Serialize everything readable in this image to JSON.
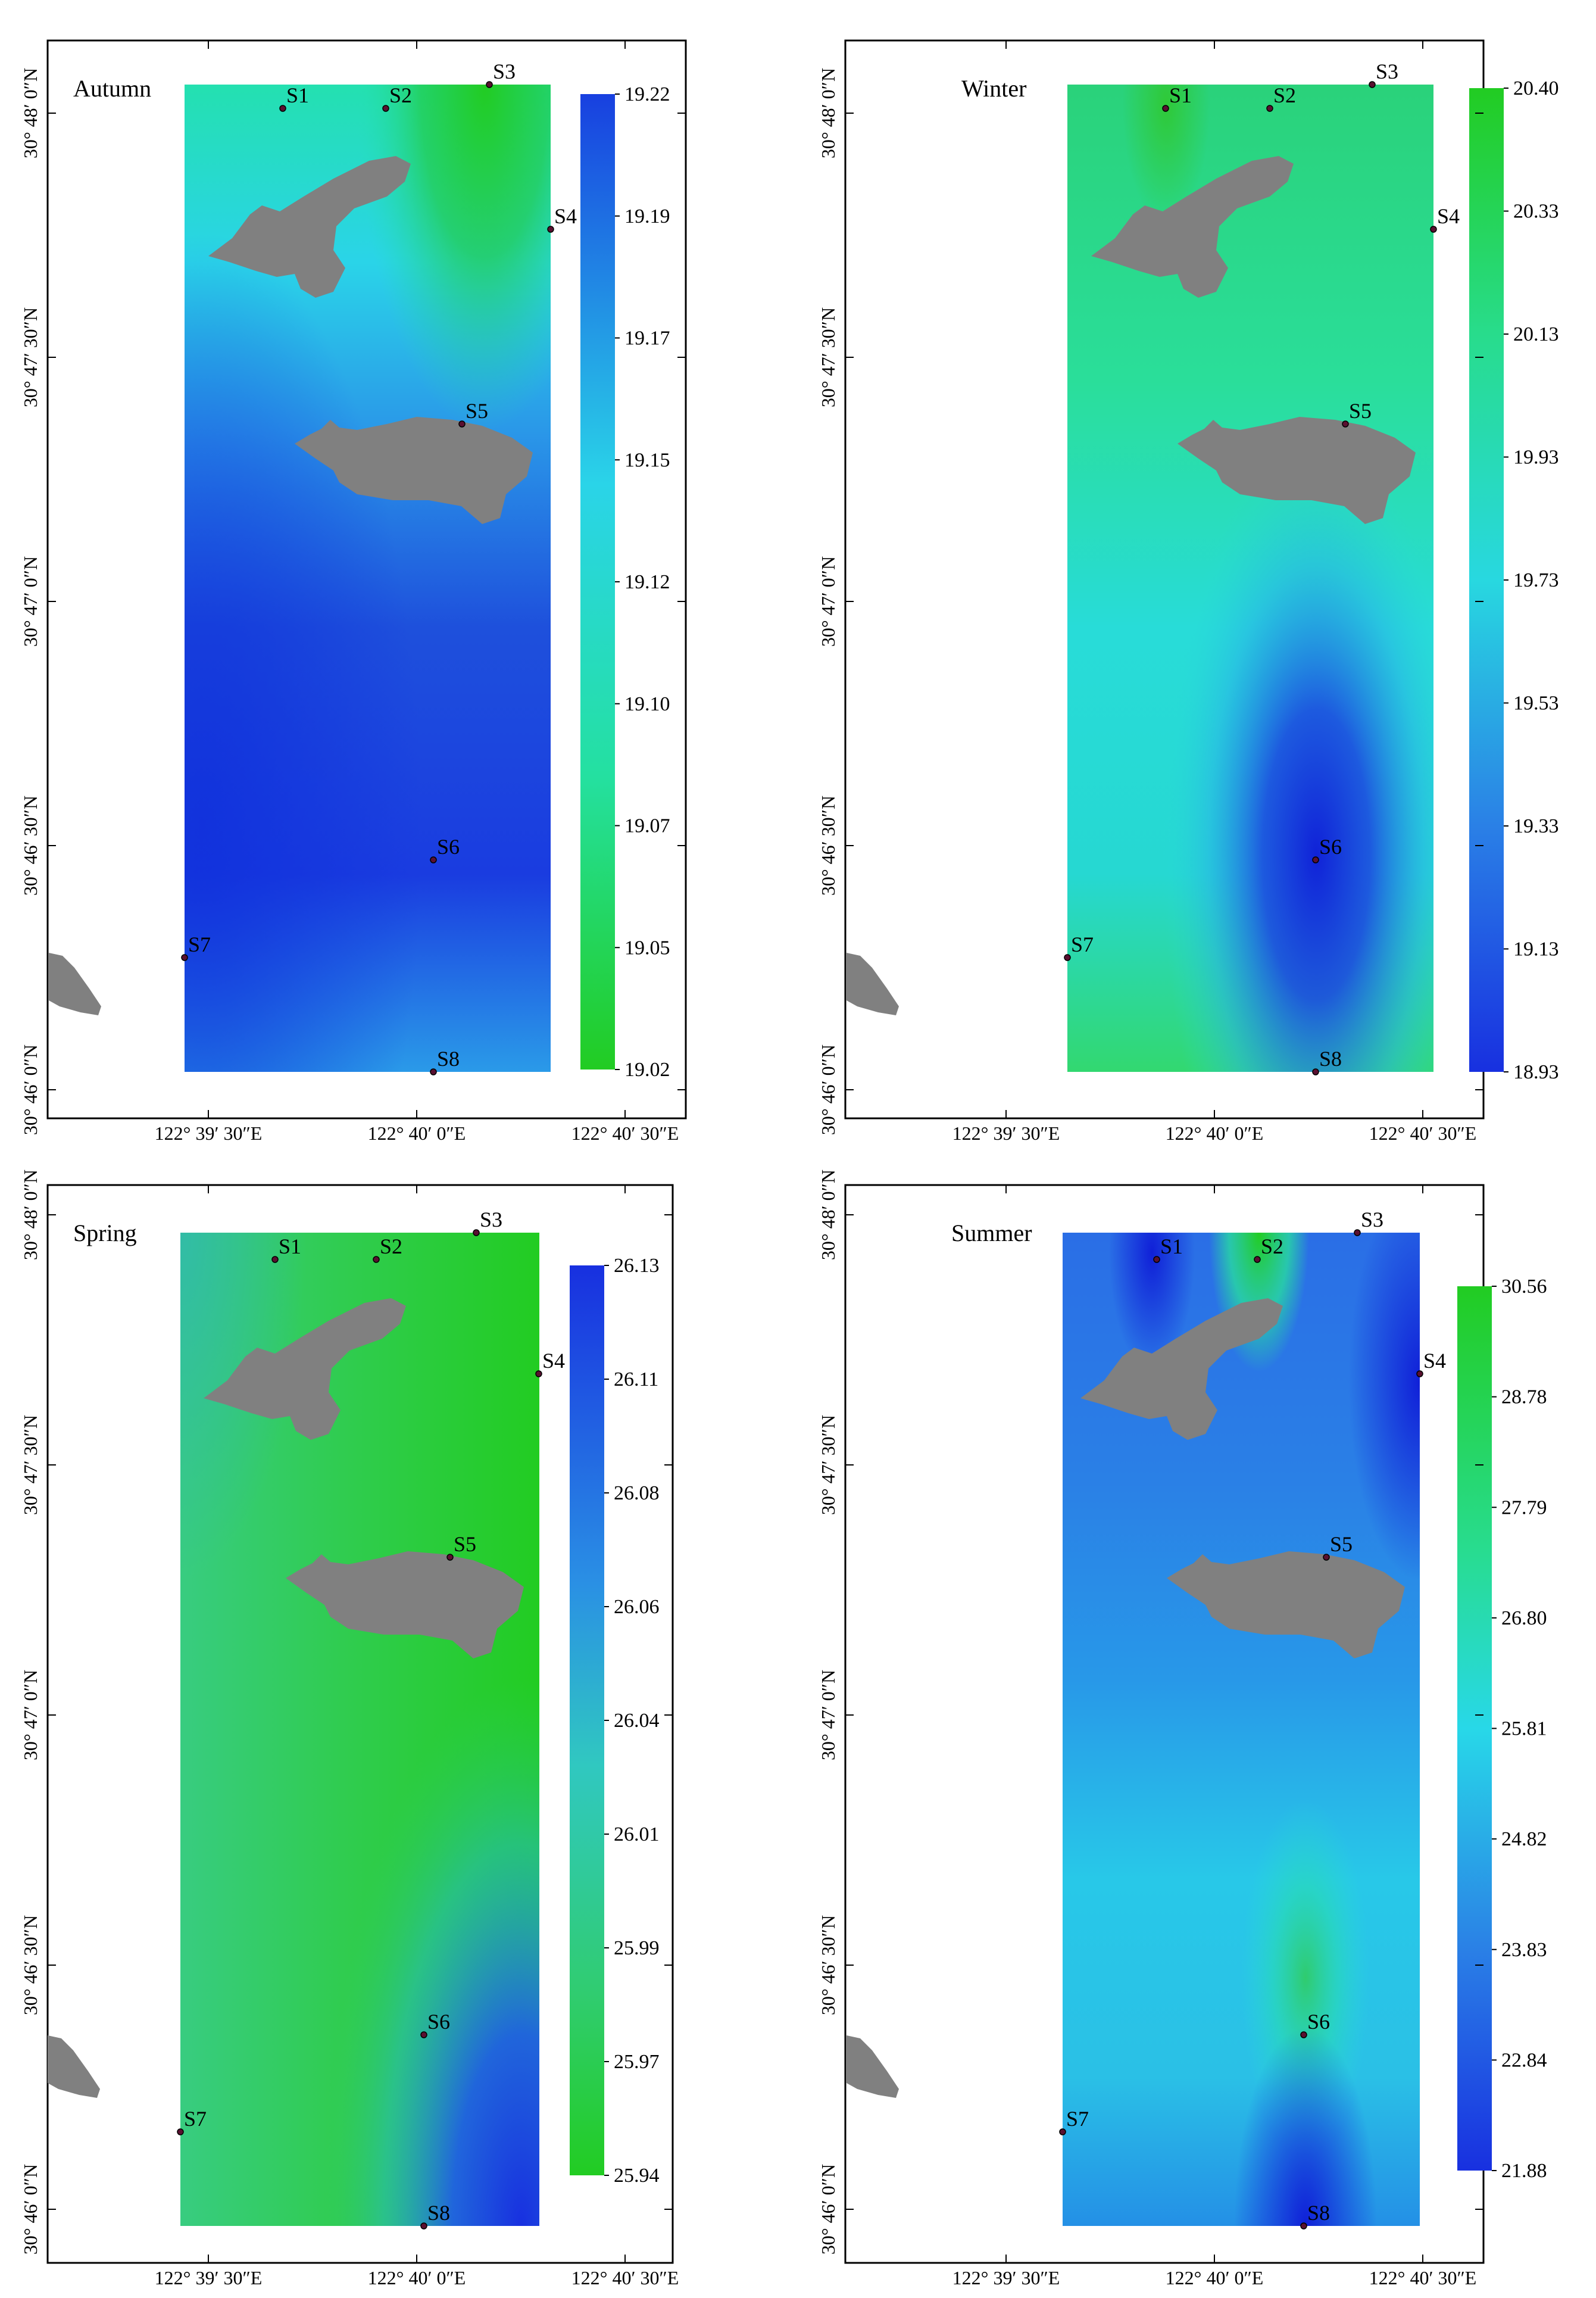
{
  "station_marker_color": "#5a1030",
  "island_color": "#808080",
  "panels": [
    {
      "season": "Autumn",
      "lon_labels": [
        "122° 39′ 30″E",
        "122° 40′ 0″E",
        "122° 40′ 30″E"
      ],
      "lat_labels": [
        "30° 48′ 0″N",
        "30° 47′ 30″N",
        "30° 47′ 0″N",
        "30° 46′ 30″N",
        "30° 46′ 0″N"
      ],
      "colorbar": {
        "top_color": "#1840e0",
        "bottom_color": "#22cc22",
        "ticks": [
          "19.22",
          "19.19",
          "19.17",
          "19.15",
          "19.12",
          "19.10",
          "19.07",
          "19.05",
          "19.02"
        ]
      },
      "stations": [
        "S1",
        "S2",
        "S3",
        "S4",
        "S5",
        "S6",
        "S7",
        "S8"
      ]
    },
    {
      "season": "Winter",
      "lon_labels": [
        "122° 39′ 30″E",
        "122° 40′ 0″E",
        "122° 40′ 30″E"
      ],
      "lat_labels": [
        "30° 48′ 0″N",
        "30° 47′ 30″N",
        "30° 47′ 0″N",
        "30° 46′ 30″N",
        "30° 46′ 0″N"
      ],
      "colorbar": {
        "top_color": "#22cc22",
        "bottom_color": "#1830e0",
        "ticks": [
          "20.40",
          "20.33",
          "20.13",
          "19.93",
          "19.73",
          "19.53",
          "19.33",
          "19.13",
          "18.93"
        ]
      },
      "stations": [
        "S1",
        "S2",
        "S3",
        "S4",
        "S5",
        "S6",
        "S7",
        "S8"
      ]
    },
    {
      "season": "Spring",
      "lon_labels": [
        "122° 39′ 30″E",
        "122° 40′ 0″E",
        "122° 40′ 30″E"
      ],
      "lat_labels": [
        "30° 48′ 0″N",
        "30° 47′ 30″N",
        "30° 47′ 0″N",
        "30° 46′ 30″N",
        "30° 46′ 0″N"
      ],
      "colorbar": {
        "top_color": "#1830e0",
        "bottom_color": "#22cc22",
        "ticks": [
          "26.13",
          "26.11",
          "26.08",
          "26.06",
          "26.04",
          "26.01",
          "25.99",
          "25.97",
          "25.94"
        ]
      },
      "stations": [
        "S1",
        "S2",
        "S3",
        "S4",
        "S5",
        "S6",
        "S7",
        "S8"
      ]
    },
    {
      "season": "Summer",
      "lon_labels": [
        "122° 39′ 30″E",
        "122° 40′ 0″E",
        "122° 40′ 30″E"
      ],
      "lat_labels": [
        "30° 48′ 0″N",
        "30° 47′ 30″N",
        "30° 47′ 0″N",
        "30° 46′ 30″N",
        "30° 46′ 0″N"
      ],
      "colorbar": {
        "top_color": "#22cc22",
        "bottom_color": "#1830e0",
        "ticks": [
          "30.56",
          "28.78",
          "27.79",
          "26.80",
          "25.81",
          "24.82",
          "23.83",
          "22.84",
          "21.88"
        ]
      },
      "stations": [
        "S1",
        "S2",
        "S3",
        "S4",
        "S5",
        "S6",
        "S7",
        "S8"
      ]
    }
  ]
}
